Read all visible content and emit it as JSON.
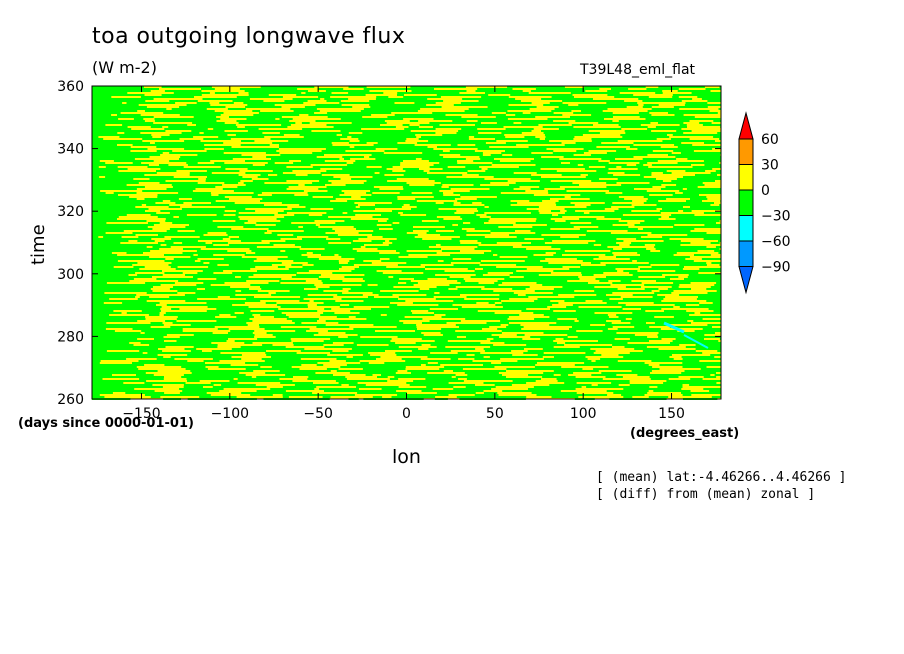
{
  "title": "toa outgoing longwave flux",
  "units": "(W m-2)",
  "run_label": "T39L48_eml_flat",
  "colors": {
    "yellow": "#ffff00",
    "green": "#00ff00",
    "orange": "#ff9900",
    "red": "#ff0000",
    "cyan": "#00ffff",
    "blue1": "#0099ff",
    "blue2": "#0066ff"
  },
  "chart_data": {
    "type": "heatmap",
    "title": "toa outgoing longwave flux",
    "subtitle": "(W m-2)",
    "xlabel": "lon",
    "ylabel": "time",
    "x_units": "(degrees_east)",
    "y_units": "(days since 0000-01-01)",
    "xlim": [
      -178,
      178
    ],
    "ylim": [
      260,
      360
    ],
    "xticks": [
      -150,
      -100,
      -50,
      0,
      50,
      100,
      150
    ],
    "yticks": [
      260,
      280,
      300,
      320,
      340,
      360
    ],
    "colorbar": {
      "levels": [
        60,
        30,
        0,
        -30,
        -60,
        -90
      ],
      "colors": [
        "#ff0000",
        "#ff9900",
        "#ffff00",
        "#00ff00",
        "#00ffff",
        "#0099ff",
        "#0066ff"
      ]
    },
    "annotations": [
      "[ (mean) lat:-4.46266..4.46266 ]",
      "[ (diff) from (mean) zonal ]"
    ]
  }
}
